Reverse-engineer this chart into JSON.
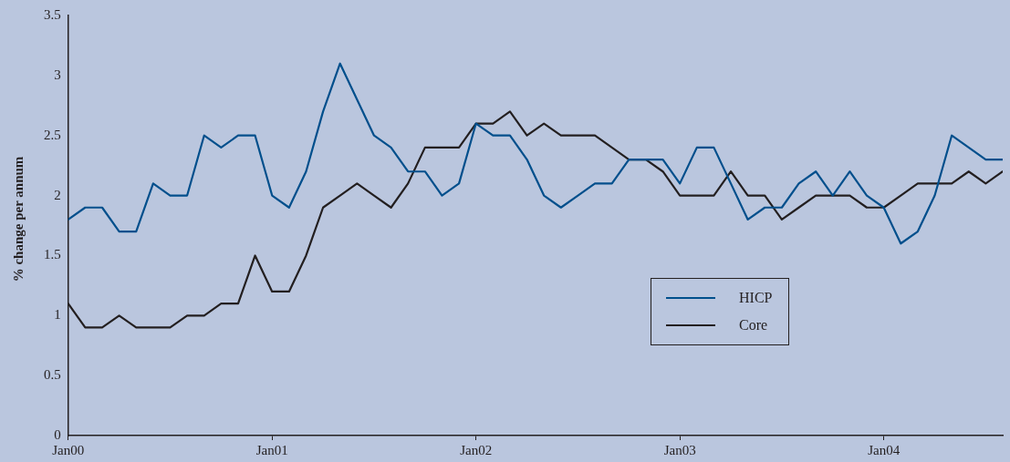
{
  "chart_data": {
    "type": "line",
    "ylabel": "% change per annum",
    "x": [
      "2000-01",
      "2000-02",
      "2000-03",
      "2000-04",
      "2000-05",
      "2000-06",
      "2000-07",
      "2000-08",
      "2000-09",
      "2000-10",
      "2000-11",
      "2000-12",
      "2001-01",
      "2001-02",
      "2001-03",
      "2001-04",
      "2001-05",
      "2001-06",
      "2001-07",
      "2001-08",
      "2001-09",
      "2001-10",
      "2001-11",
      "2001-12",
      "2002-01",
      "2002-02",
      "2002-03",
      "2002-04",
      "2002-05",
      "2002-06",
      "2002-07",
      "2002-08",
      "2002-09",
      "2002-10",
      "2002-11",
      "2002-12",
      "2003-01",
      "2003-02",
      "2003-03",
      "2003-04",
      "2003-05",
      "2003-06",
      "2003-07",
      "2003-08",
      "2003-09",
      "2003-10",
      "2003-11",
      "2003-12",
      "2004-01",
      "2004-02",
      "2004-03",
      "2004-04",
      "2004-05",
      "2004-06",
      "2004-07",
      "2004-08"
    ],
    "series": [
      {
        "name": "HICP",
        "color": "#004f8c",
        "values": [
          1.8,
          1.9,
          1.9,
          1.7,
          1.7,
          2.1,
          2.0,
          2.0,
          2.5,
          2.4,
          2.5,
          2.5,
          2.0,
          1.9,
          2.2,
          2.7,
          3.1,
          2.8,
          2.5,
          2.4,
          2.2,
          2.2,
          2.0,
          2.1,
          2.6,
          2.5,
          2.5,
          2.3,
          2.0,
          1.9,
          2.0,
          2.1,
          2.1,
          2.3,
          2.3,
          2.3,
          2.1,
          2.4,
          2.4,
          2.1,
          1.8,
          1.9,
          1.9,
          2.1,
          2.2,
          2.0,
          2.2,
          2.0,
          1.9,
          1.6,
          1.7,
          2.0,
          2.5,
          2.4,
          2.3,
          2.3
        ]
      },
      {
        "name": "Core",
        "color": "#231f20",
        "values": [
          1.1,
          0.9,
          0.9,
          1.0,
          0.9,
          0.9,
          0.9,
          1.0,
          1.0,
          1.1,
          1.1,
          1.5,
          1.2,
          1.2,
          1.5,
          1.9,
          2.0,
          2.1,
          2.0,
          1.9,
          2.1,
          2.4,
          2.4,
          2.4,
          2.6,
          2.6,
          2.7,
          2.5,
          2.6,
          2.5,
          2.5,
          2.5,
          2.4,
          2.3,
          2.3,
          2.2,
          2.0,
          2.0,
          2.0,
          2.2,
          2.0,
          2.0,
          1.8,
          1.9,
          2.0,
          2.0,
          2.0,
          1.9,
          1.9,
          2.0,
          2.1,
          2.1,
          2.1,
          2.2,
          2.1,
          2.2
        ]
      }
    ],
    "xlim": [
      "2000-01",
      "2004-08"
    ],
    "xticks": [
      {
        "value": "2000-01",
        "label": "Jan00"
      },
      {
        "value": "2001-01",
        "label": "Jan01"
      },
      {
        "value": "2002-01",
        "label": "Jan02"
      },
      {
        "value": "2003-01",
        "label": "Jan03"
      },
      {
        "value": "2004-01",
        "label": "Jan04"
      }
    ],
    "ylim": [
      0,
      3.5
    ],
    "yticks": [
      0,
      0.5,
      1,
      1.5,
      2,
      2.5,
      3,
      3.5
    ],
    "grid": false,
    "legend": "bottom right",
    "marker": "none",
    "line_style": "solid"
  }
}
